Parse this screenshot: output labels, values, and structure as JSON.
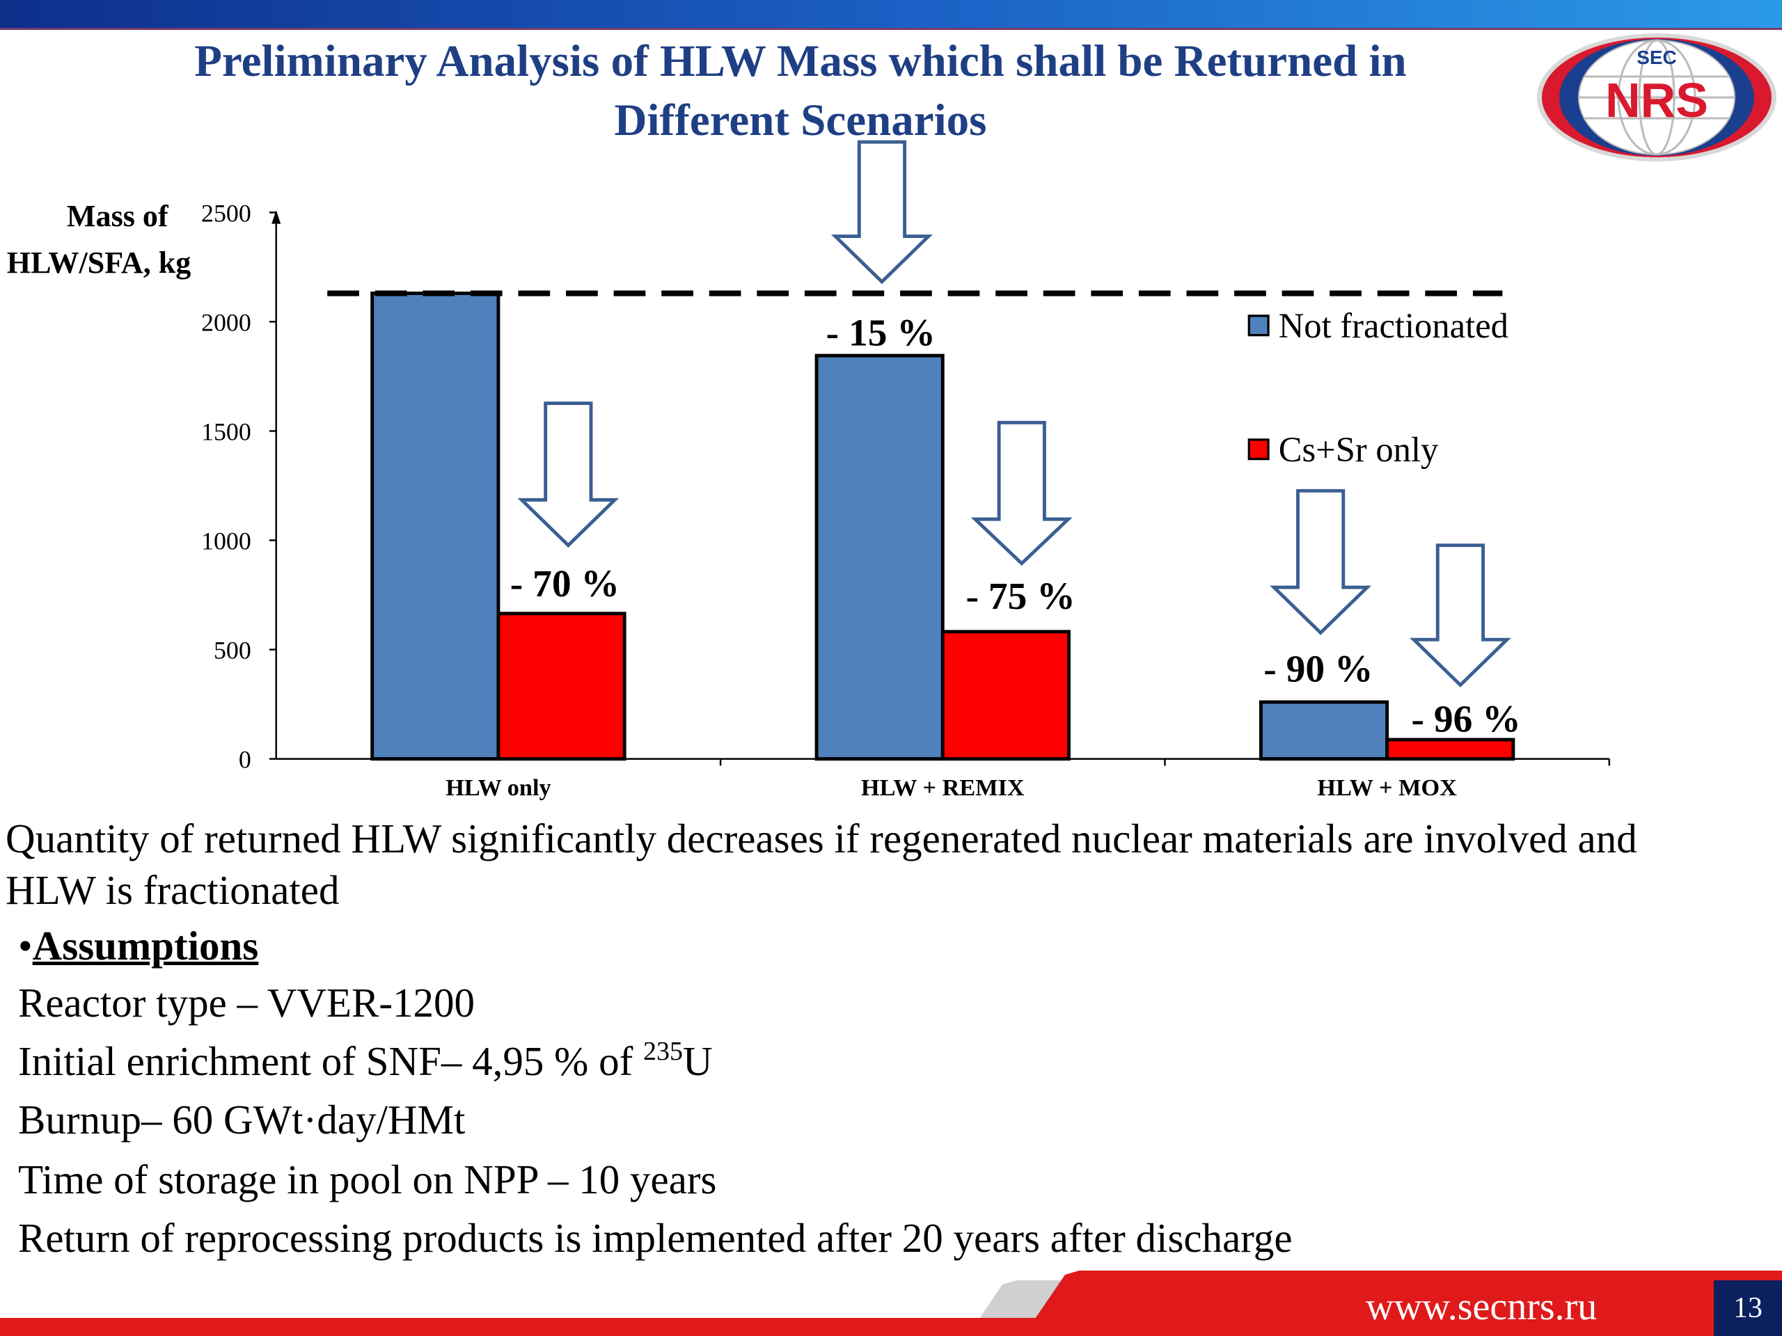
{
  "header": {
    "title_line1": "Preliminary Analysis of HLW Mass which shall be Returned in",
    "title_line2": "Different Scenarios",
    "logo_text_top": "SEC",
    "logo_text_main": "NRS"
  },
  "chart_data": {
    "type": "bar",
    "ylabel_line1": "Mass of",
    "ylabel_line2": "HLW/SFA, kg",
    "ylim": [
      0,
      2500
    ],
    "yticks": [
      "0",
      "500",
      "1000",
      "1500",
      "2000",
      "2500"
    ],
    "categories": [
      "HLW only",
      "HLW + REMIX",
      "HLW + MOX"
    ],
    "series": [
      {
        "name": "Not fractionated",
        "color": "#4f81bd",
        "values": [
          2130,
          1845,
          260
        ]
      },
      {
        "name": "Cs+Sr only",
        "color": "#ff0000",
        "values": [
          665,
          582,
          88
        ]
      }
    ],
    "reference_line": 2130,
    "annotations": [
      "- 70 %",
      "- 15 %",
      "- 75 %",
      "- 90 %",
      "- 96 %"
    ],
    "legend_position": "right"
  },
  "body": {
    "summary_line1": "Quantity of returned HLW significantly decreases if regenerated nuclear materials are involved and",
    "summary_line2": "HLW is fractionated",
    "bullet": "•",
    "assumptions_heading": "Assumptions",
    "assumption1": "Reactor type  – VVER-1200",
    "assumption2_pre": "Initial enrichment of SNF– 4,95 % of ",
    "assumption2_sup": "235",
    "assumption2_post": "U",
    "assumption3": "Burnup– 60 GWt·day/HMt",
    "assumption4": "Time of storage in pool on NPP – 10 years",
    "assumption5": "Return of reprocessing products is implemented after 20 years after discharge"
  },
  "footer": {
    "url": "www.secnrs.ru",
    "page_number": "13"
  }
}
